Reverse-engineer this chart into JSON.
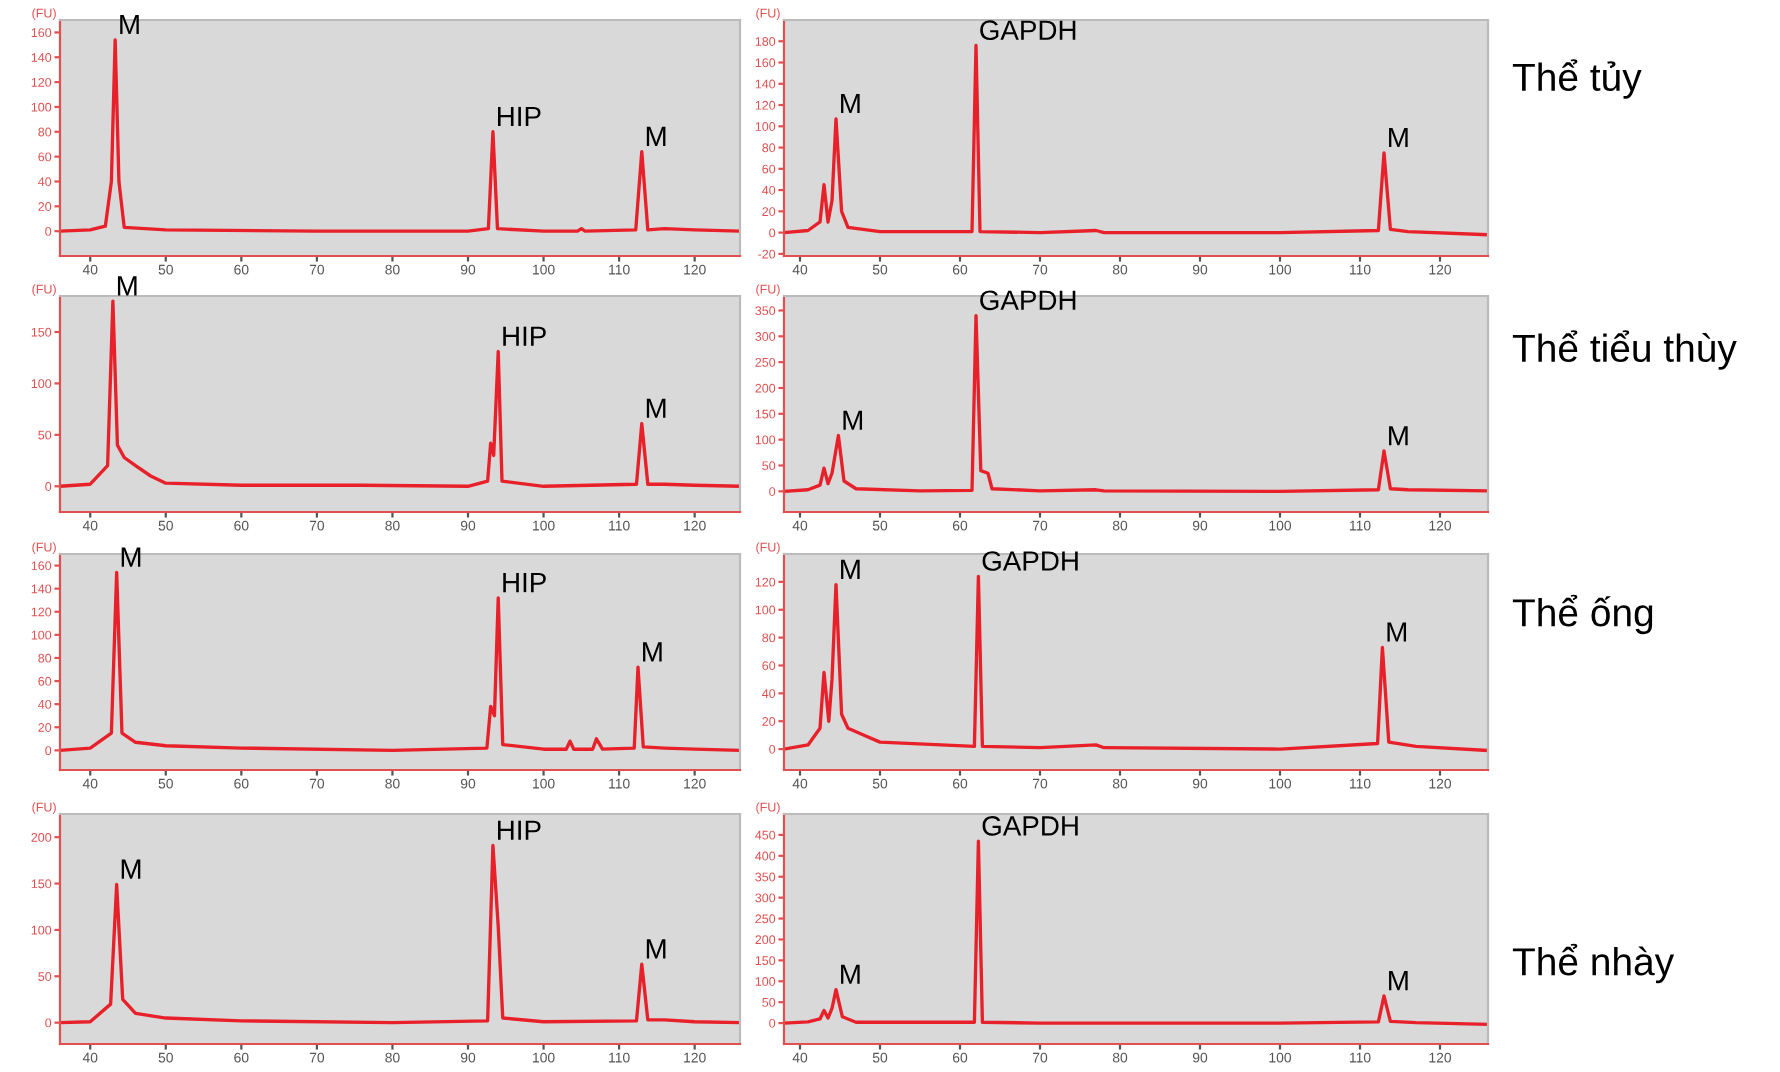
{
  "chart_data": [
    {
      "type": "line",
      "ylabel": "(FU)",
      "xlim": [
        36,
        126
      ],
      "ylim": [
        -20,
        170
      ],
      "xticks": [
        40,
        50,
        60,
        70,
        80,
        90,
        100,
        110,
        120
      ],
      "yticks": [
        0,
        20,
        40,
        60,
        80,
        100,
        120,
        140,
        160
      ],
      "x": [
        36,
        40,
        42,
        42.8,
        43.3,
        43.8,
        44.5,
        50,
        70,
        90,
        92.7,
        93.3,
        93.9,
        100,
        104.5,
        105,
        105.5,
        112.2,
        113,
        113.8,
        116,
        120,
        126
      ],
      "series": [
        {
          "color": "#e8202a",
          "values": [
            0,
            1,
            4,
            40,
            154,
            40,
            3,
            1,
            0,
            0,
            2,
            80,
            2,
            0,
            0,
            2,
            0,
            1,
            64,
            1,
            2,
            1,
            0
          ]
        }
      ],
      "annotations": [
        {
          "text": "M",
          "x": 43.3,
          "y": 154
        },
        {
          "text": "HIP",
          "x": 93.3,
          "y": 80
        },
        {
          "text": "M",
          "x": 113,
          "y": 64
        }
      ]
    },
    {
      "type": "line",
      "ylabel": "(FU)",
      "xlim": [
        38,
        126
      ],
      "ylim": [
        -22,
        200
      ],
      "xticks": [
        40,
        50,
        60,
        70,
        80,
        90,
        100,
        110,
        120
      ],
      "yticks": [
        -20,
        0,
        20,
        40,
        60,
        80,
        100,
        120,
        140,
        160,
        180
      ],
      "x": [
        38,
        41,
        42.5,
        43,
        43.5,
        44,
        44.5,
        45.2,
        46,
        50,
        61.5,
        62,
        62.5,
        70,
        77,
        78,
        100,
        112.3,
        113,
        113.8,
        116,
        126
      ],
      "series": [
        {
          "color": "#e8202a",
          "values": [
            0,
            2,
            10,
            45,
            10,
            30,
            107,
            20,
            5,
            1,
            1,
            176,
            1,
            0,
            2,
            0,
            0,
            2,
            75,
            3,
            1,
            -2
          ]
        }
      ],
      "annotations": [
        {
          "text": "M",
          "x": 44.5,
          "y": 107
        },
        {
          "text": "GAPDH",
          "x": 62,
          "y": 176
        },
        {
          "text": "M",
          "x": 113,
          "y": 75
        },
        "Thể tủy"
      ]
    },
    {
      "type": "line",
      "ylabel": "(FU)",
      "xlim": [
        36,
        126
      ],
      "ylim": [
        -25,
        185
      ],
      "xticks": [
        40,
        50,
        60,
        70,
        80,
        90,
        100,
        110,
        120
      ],
      "yticks": [
        0,
        50,
        100,
        150
      ],
      "x": [
        36,
        40,
        42.3,
        43,
        43.6,
        44.5,
        46,
        48,
        50,
        60,
        76,
        90,
        92.6,
        93,
        93.4,
        94,
        94.5,
        100,
        112.3,
        113,
        113.8,
        116,
        120,
        126
      ],
      "series": [
        {
          "color": "#e8202a",
          "values": [
            0,
            2,
            20,
            180,
            40,
            28,
            20,
            10,
            3,
            1,
            1,
            0,
            5,
            42,
            30,
            131,
            5,
            0,
            2,
            61,
            2,
            2,
            1,
            0
          ]
        }
      ],
      "annotations": [
        {
          "text": "M",
          "x": 43,
          "y": 180
        },
        {
          "text": "HIP",
          "x": 94,
          "y": 131
        },
        {
          "text": "M",
          "x": 113,
          "y": 61
        }
      ]
    },
    {
      "type": "line",
      "ylabel": "(FU)",
      "xlim": [
        38,
        126
      ],
      "ylim": [
        -40,
        378
      ],
      "xticks": [
        40,
        50,
        60,
        70,
        80,
        90,
        100,
        110,
        120
      ],
      "yticks": [
        0,
        50,
        100,
        150,
        200,
        250,
        300,
        350
      ],
      "x": [
        38,
        41,
        42.5,
        43,
        43.5,
        44,
        44.8,
        45.5,
        47,
        55,
        61.5,
        62,
        62.6,
        63.5,
        64,
        70,
        77,
        78,
        100,
        112.3,
        113,
        113.8,
        116,
        126
      ],
      "series": [
        {
          "color": "#e8202a",
          "values": [
            0,
            3,
            12,
            45,
            15,
            35,
            108,
            20,
            5,
            1,
            2,
            340,
            40,
            35,
            5,
            1,
            3,
            1,
            0,
            3,
            78,
            5,
            3,
            1
          ]
        }
      ],
      "annotations": [
        {
          "text": "M",
          "x": 44.8,
          "y": 108
        },
        {
          "text": "GAPDH",
          "x": 62,
          "y": 340
        },
        {
          "text": "M",
          "x": 113,
          "y": 78
        },
        "Thể tiểu thùy"
      ]
    },
    {
      "type": "line",
      "ylabel": "(FU)",
      "xlim": [
        36,
        126
      ],
      "ylim": [
        -17,
        170
      ],
      "xticks": [
        40,
        50,
        60,
        70,
        80,
        90,
        100,
        110,
        120
      ],
      "yticks": [
        0,
        20,
        40,
        60,
        80,
        100,
        120,
        140,
        160
      ],
      "x": [
        36,
        40,
        42.8,
        43.5,
        44.2,
        46,
        50,
        60,
        80,
        92.5,
        93,
        93.5,
        94,
        94.6,
        100,
        103,
        103.5,
        104,
        106.5,
        107,
        107.8,
        112,
        112.5,
        113.2,
        116,
        120,
        126
      ],
      "series": [
        {
          "color": "#e8202a",
          "values": [
            0,
            2,
            15,
            154,
            15,
            7,
            4,
            2,
            0,
            2,
            38,
            30,
            132,
            5,
            1,
            1,
            8,
            1,
            1,
            10,
            1,
            2,
            72,
            3,
            2,
            1,
            0
          ]
        }
      ],
      "annotations": [
        {
          "text": "M",
          "x": 43.5,
          "y": 154
        },
        {
          "text": "HIP",
          "x": 94,
          "y": 132
        },
        {
          "text": "M",
          "x": 112.5,
          "y": 72
        }
      ]
    },
    {
      "type": "line",
      "ylabel": "(FU)",
      "xlim": [
        38,
        126
      ],
      "ylim": [
        -15,
        140
      ],
      "xticks": [
        40,
        50,
        60,
        70,
        80,
        90,
        100,
        110,
        120
      ],
      "yticks": [
        0,
        20,
        40,
        60,
        80,
        100,
        120
      ],
      "x": [
        38,
        41,
        42.5,
        43,
        43.6,
        44,
        44.5,
        45.2,
        46,
        48,
        50,
        61.8,
        62.3,
        62.8,
        70,
        77,
        78,
        100,
        112.2,
        112.8,
        113.6,
        117,
        126
      ],
      "series": [
        {
          "color": "#e8202a",
          "values": [
            0,
            3,
            15,
            55,
            20,
            50,
            118,
            25,
            15,
            10,
            5,
            2,
            124,
            2,
            1,
            3,
            1,
            0,
            4,
            73,
            5,
            2,
            -1
          ]
        }
      ],
      "annotations": [
        {
          "text": "M",
          "x": 44.5,
          "y": 118
        },
        {
          "text": "GAPDH",
          "x": 62.3,
          "y": 124
        },
        {
          "text": "M",
          "x": 112.8,
          "y": 73
        },
        "Thể ống"
      ]
    },
    {
      "type": "line",
      "ylabel": "(FU)",
      "xlim": [
        36,
        126
      ],
      "ylim": [
        -23,
        225
      ],
      "xticks": [
        40,
        50,
        60,
        70,
        80,
        90,
        100,
        110,
        120
      ],
      "yticks": [
        0,
        50,
        100,
        150,
        200
      ],
      "x": [
        36,
        40,
        42.7,
        43.5,
        44.3,
        46,
        50,
        60,
        80,
        92.6,
        93.3,
        94,
        94.6,
        100,
        112.3,
        113,
        113.8,
        116,
        120,
        126
      ],
      "series": [
        {
          "color": "#e8202a",
          "values": [
            0,
            1,
            20,
            149,
            25,
            10,
            5,
            2,
            0,
            2,
            191,
            104,
            5,
            1,
            2,
            63,
            3,
            3,
            1,
            0
          ]
        }
      ],
      "annotations": [
        {
          "text": "M",
          "x": 43.5,
          "y": 149
        },
        {
          "text": "HIP",
          "x": 93.3,
          "y": 191
        },
        {
          "text": "M",
          "x": 113,
          "y": 63
        }
      ]
    },
    {
      "type": "line",
      "ylabel": "(FU)",
      "xlim": [
        38,
        126
      ],
      "ylim": [
        -50,
        500
      ],
      "xticks": [
        40,
        50,
        60,
        70,
        80,
        90,
        100,
        110,
        120
      ],
      "yticks": [
        0,
        50,
        100,
        150,
        200,
        250,
        300,
        350,
        400,
        450
      ],
      "x": [
        38,
        41,
        42.5,
        43,
        43.5,
        44,
        44.5,
        45.3,
        47,
        61.8,
        62.3,
        62.8,
        70,
        100,
        112.3,
        113,
        113.8,
        117,
        126
      ],
      "series": [
        {
          "color": "#e8202a",
          "values": [
            0,
            3,
            10,
            30,
            12,
            35,
            80,
            15,
            2,
            2,
            435,
            2,
            0,
            0,
            3,
            65,
            4,
            1,
            -3
          ]
        }
      ],
      "annotations": [
        {
          "text": "M",
          "x": 44.5,
          "y": 80
        },
        {
          "text": "GAPDH",
          "x": 62.3,
          "y": 435
        },
        {
          "text": "M",
          "x": 113,
          "y": 65
        },
        "Thể nhày"
      ]
    }
  ]
}
